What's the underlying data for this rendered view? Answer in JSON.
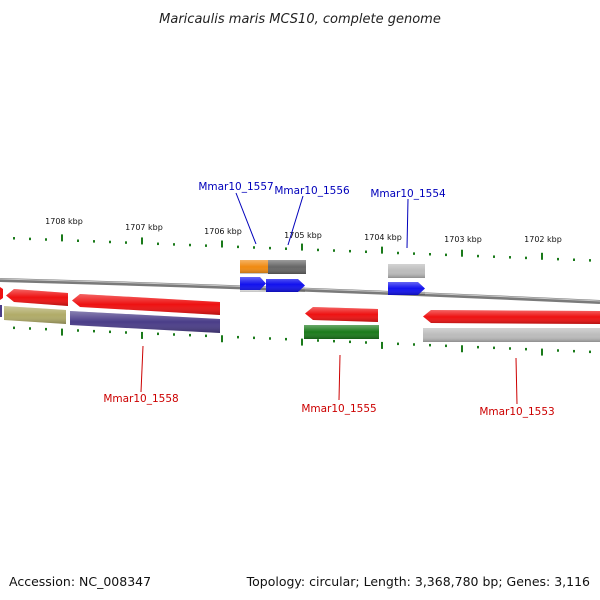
{
  "title": "Maricaulis maris MCS10, complete genome",
  "footer": {
    "accession": "Accession: NC_008347",
    "summary": "Topology: circular; Length: 3,368,780 bp; Genes: 3,116"
  },
  "colors": {
    "backbone": "#8a8a8a",
    "tick": "#1a7a1a",
    "label_top": "#0000bb",
    "label_bottom": "#cc0000",
    "red": "#ee1111",
    "blue": "#1111ee",
    "orange": "#f08a10",
    "gray": "#666666",
    "lightgray": "#bbbbbb",
    "green": "#1a7a1a",
    "olive": "#b0ab68",
    "purple": "#4a3d88"
  },
  "scale": {
    "ticks": [
      {
        "label": "1708 kbp"
      },
      {
        "label": "1707 kbp"
      },
      {
        "label": "1706 kbp"
      },
      {
        "label": "1705 kbp"
      },
      {
        "label": "1704 kbp"
      },
      {
        "label": "1703 kbp"
      },
      {
        "label": "1702 kbp"
      }
    ]
  },
  "gene_labels": [
    {
      "name": "Mmar10_1557",
      "color": "blue"
    },
    {
      "name": "Mmar10_1556",
      "color": "blue"
    },
    {
      "name": "Mmar10_1554",
      "color": "blue"
    },
    {
      "name": "Mmar10_1558",
      "color": "red"
    },
    {
      "name": "Mmar10_1555",
      "color": "red"
    },
    {
      "name": "Mmar10_1553",
      "color": "red"
    }
  ]
}
